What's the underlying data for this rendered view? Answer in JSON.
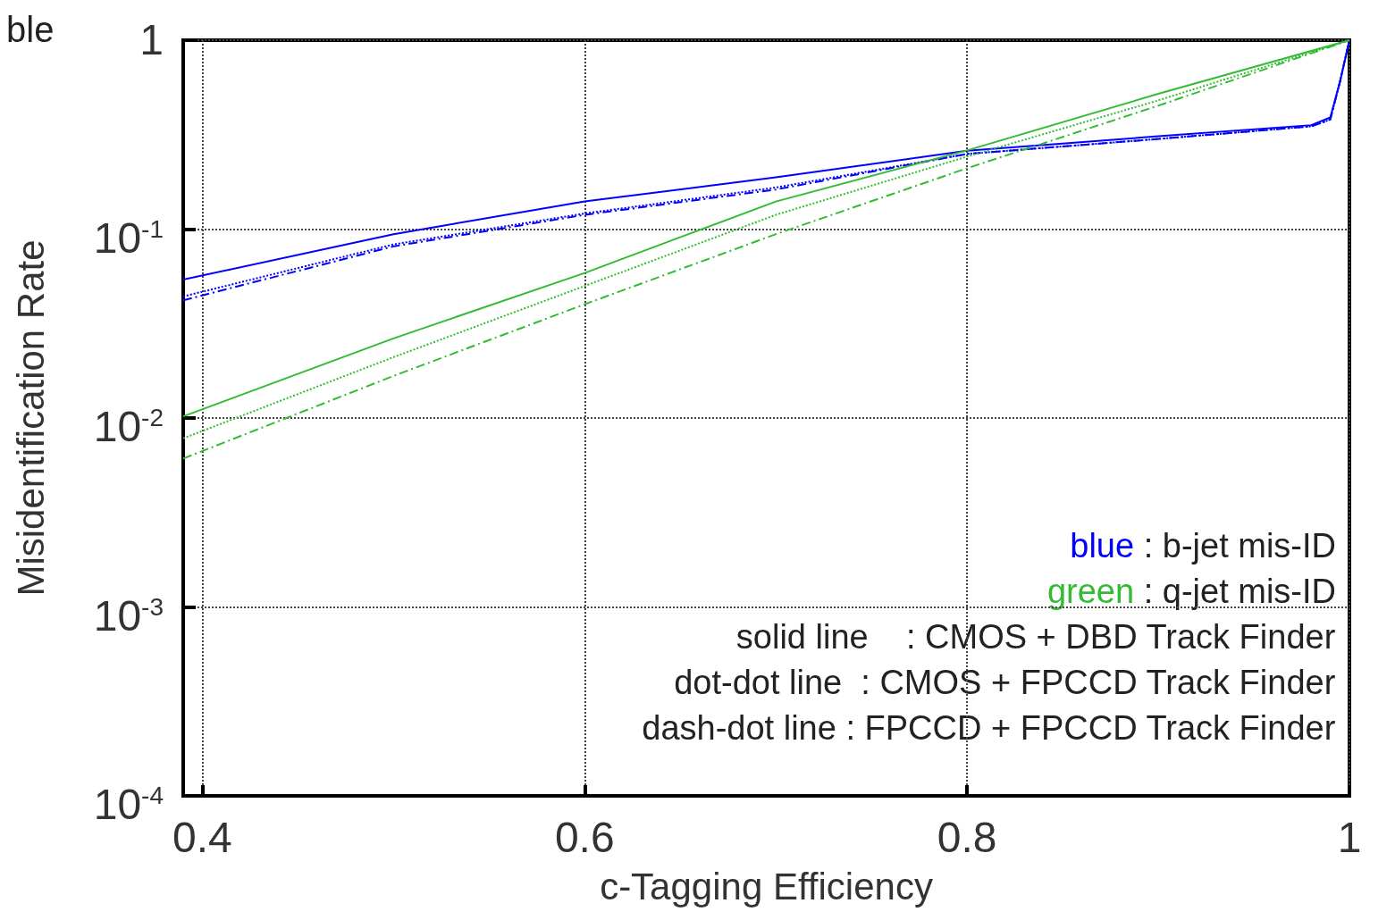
{
  "chart_data": {
    "type": "line",
    "title": "ble",
    "xlabel": "c-Tagging Efficiency",
    "ylabel": "Misidentification Rate",
    "log": "y",
    "grid": true,
    "xlim": [
      0.39,
      1.0
    ],
    "xticks": [
      0.4,
      0.6,
      0.8,
      1
    ],
    "ylim": [
      0.0001,
      1
    ],
    "yticks": [
      {
        "value": 1,
        "label": "1"
      },
      {
        "value": 0.1,
        "label": "10$^{-1}$"
      },
      {
        "value": 0.01,
        "label": "10$^{-2}$"
      },
      {
        "value": 0.001,
        "label": "10$^{-3}$"
      },
      {
        "value": 0.0001,
        "label": "10$^{-4}$"
      }
    ],
    "series": [
      {
        "color": "#0000ff",
        "line_style": "solid",
        "x": [
          0.39,
          0.5,
          0.6,
          0.7,
          0.8,
          0.9,
          0.98,
          0.99,
          0.995,
          1.0
        ],
        "values": [
          0.054,
          0.094,
          0.14,
          0.188,
          0.26,
          0.31,
          0.355,
          0.39,
          0.6,
          1
        ]
      },
      {
        "color": "#0000ff",
        "line_style": "dotted",
        "x": [
          0.39,
          0.5,
          0.6,
          0.7,
          0.8,
          0.9,
          0.98,
          0.99,
          0.995,
          1.0
        ],
        "values": [
          0.044,
          0.083,
          0.121,
          0.166,
          0.25,
          0.3,
          0.35,
          0.38,
          0.6,
          1
        ]
      },
      {
        "color": "#0000ff",
        "line_style": "dashed",
        "x": [
          0.39,
          0.5,
          0.6,
          0.7,
          0.8,
          0.9,
          0.98,
          0.99,
          0.995,
          1.0
        ],
        "values": [
          0.042,
          0.081,
          0.119,
          0.162,
          0.25,
          0.3,
          0.35,
          0.38,
          0.6,
          1
        ]
      },
      {
        "color": "#33bb33",
        "line_style": "solid",
        "x": [
          0.39,
          0.5,
          0.6,
          0.7,
          0.8,
          0.9,
          1.0
        ],
        "values": [
          0.0102,
          0.0264,
          0.0586,
          0.14,
          0.261,
          0.52,
          1
        ]
      },
      {
        "color": "#33bb33",
        "line_style": "dotted",
        "x": [
          0.39,
          0.5,
          0.6,
          0.7,
          0.8,
          0.9,
          1.0
        ],
        "values": [
          0.0078,
          0.021,
          0.05,
          0.119,
          0.242,
          0.48,
          1
        ]
      },
      {
        "color": "#33bb33",
        "line_style": "dashed",
        "x": [
          0.39,
          0.5,
          0.6,
          0.7,
          0.8,
          0.9,
          1.0
        ],
        "values": [
          0.0061,
          0.0167,
          0.04,
          0.094,
          0.21,
          0.45,
          1
        ]
      }
    ],
    "annotations": [
      "blue : b-jet mis-ID",
      "green : q-jet mis-ID",
      "solid line    : CMOS + DBD Track Finder",
      "dot-dot line  : CMOS + FPCCD Track Finder",
      "dash-dot line : FPCCD + FPCCD Track Finder"
    ]
  }
}
